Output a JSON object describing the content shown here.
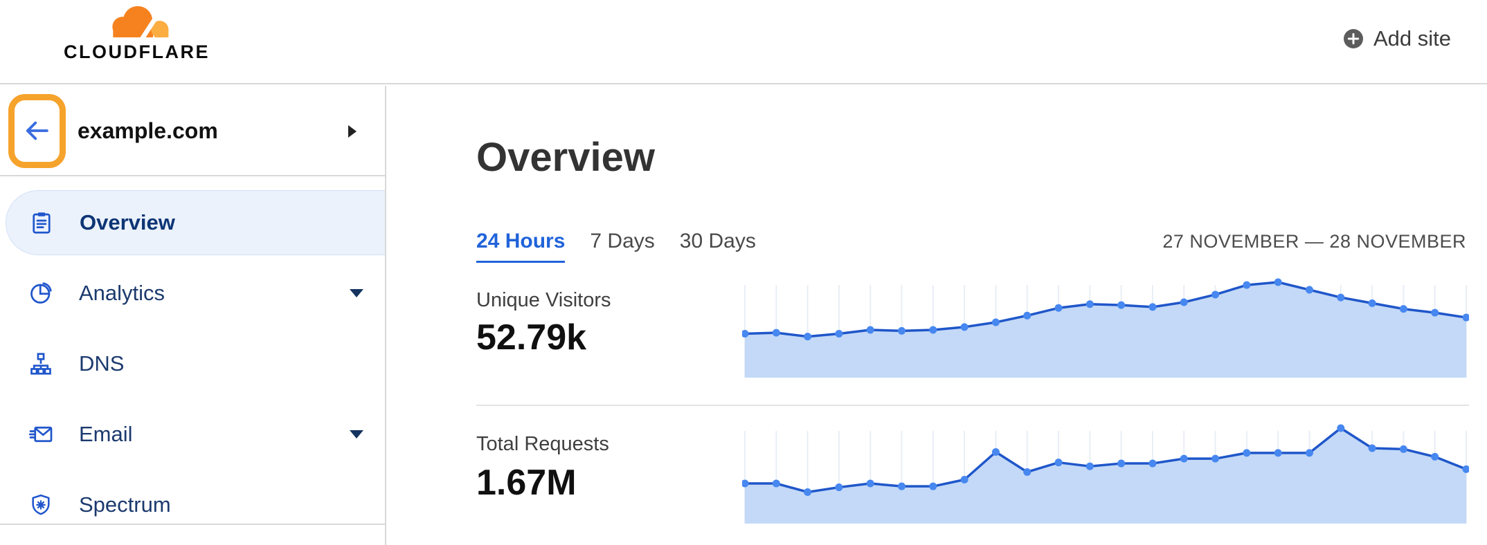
{
  "header": {
    "logo_text": "CLOUDFLARE",
    "add_site_label": "Add site"
  },
  "sidebar": {
    "site_name": "example.com",
    "items": [
      {
        "label": "Overview",
        "icon": "clipboard-icon",
        "selected": true,
        "has_submenu": false
      },
      {
        "label": "Analytics",
        "icon": "pie-chart-icon",
        "selected": false,
        "has_submenu": true
      },
      {
        "label": "DNS",
        "icon": "network-tree-icon",
        "selected": false,
        "has_submenu": false
      },
      {
        "label": "Email",
        "icon": "envelope-icon",
        "selected": false,
        "has_submenu": true
      },
      {
        "label": "Spectrum",
        "icon": "shield-icon",
        "selected": false,
        "has_submenu": false
      }
    ]
  },
  "main": {
    "title": "Overview",
    "tabs": [
      {
        "label": "24 Hours",
        "active": true
      },
      {
        "label": "7 Days",
        "active": false
      },
      {
        "label": "30 Days",
        "active": false
      }
    ],
    "date_range": "27 NOVEMBER — 28 NOVEMBER",
    "stats": [
      {
        "label": "Unique Visitors",
        "value": "52.79k"
      },
      {
        "label": "Total Requests",
        "value": "1.67M"
      }
    ]
  },
  "chart_data": [
    {
      "type": "area",
      "title": "Unique Visitors",
      "total_label": "52.79k",
      "points": 24,
      "x_axis": "hourly, 27 November — 28 November (ticks hidden)",
      "values_relative": [
        46,
        47,
        43,
        46,
        50,
        49,
        50,
        53,
        58,
        65,
        73,
        77,
        76,
        74,
        79,
        87,
        97,
        100,
        92,
        84,
        78,
        72,
        68,
        63
      ]
    },
    {
      "type": "area",
      "title": "Total Requests",
      "total_label": "1.67M",
      "points": 24,
      "x_axis": "hourly, 27 November — 28 November (ticks hidden)",
      "values_relative": [
        42,
        42,
        33,
        38,
        42,
        39,
        39,
        46,
        75,
        54,
        64,
        60,
        63,
        63,
        68,
        68,
        74,
        74,
        74,
        100,
        79,
        78,
        70,
        57
      ]
    }
  ],
  "colors": {
    "accent_blue": "#2163da",
    "nav_text": "#1c3a6e",
    "nav_icon": "#2056cc",
    "selected_bg": "#ebf2fc",
    "chart_line": "#1f56c9",
    "chart_dot": "#4787f0",
    "chart_fill": "#c3d9f7",
    "grid_line": "#e9eef6",
    "highlight_orange": "#f6a32c",
    "brand_orange": "#f6821f",
    "brand_orange_light": "#fbad41"
  }
}
